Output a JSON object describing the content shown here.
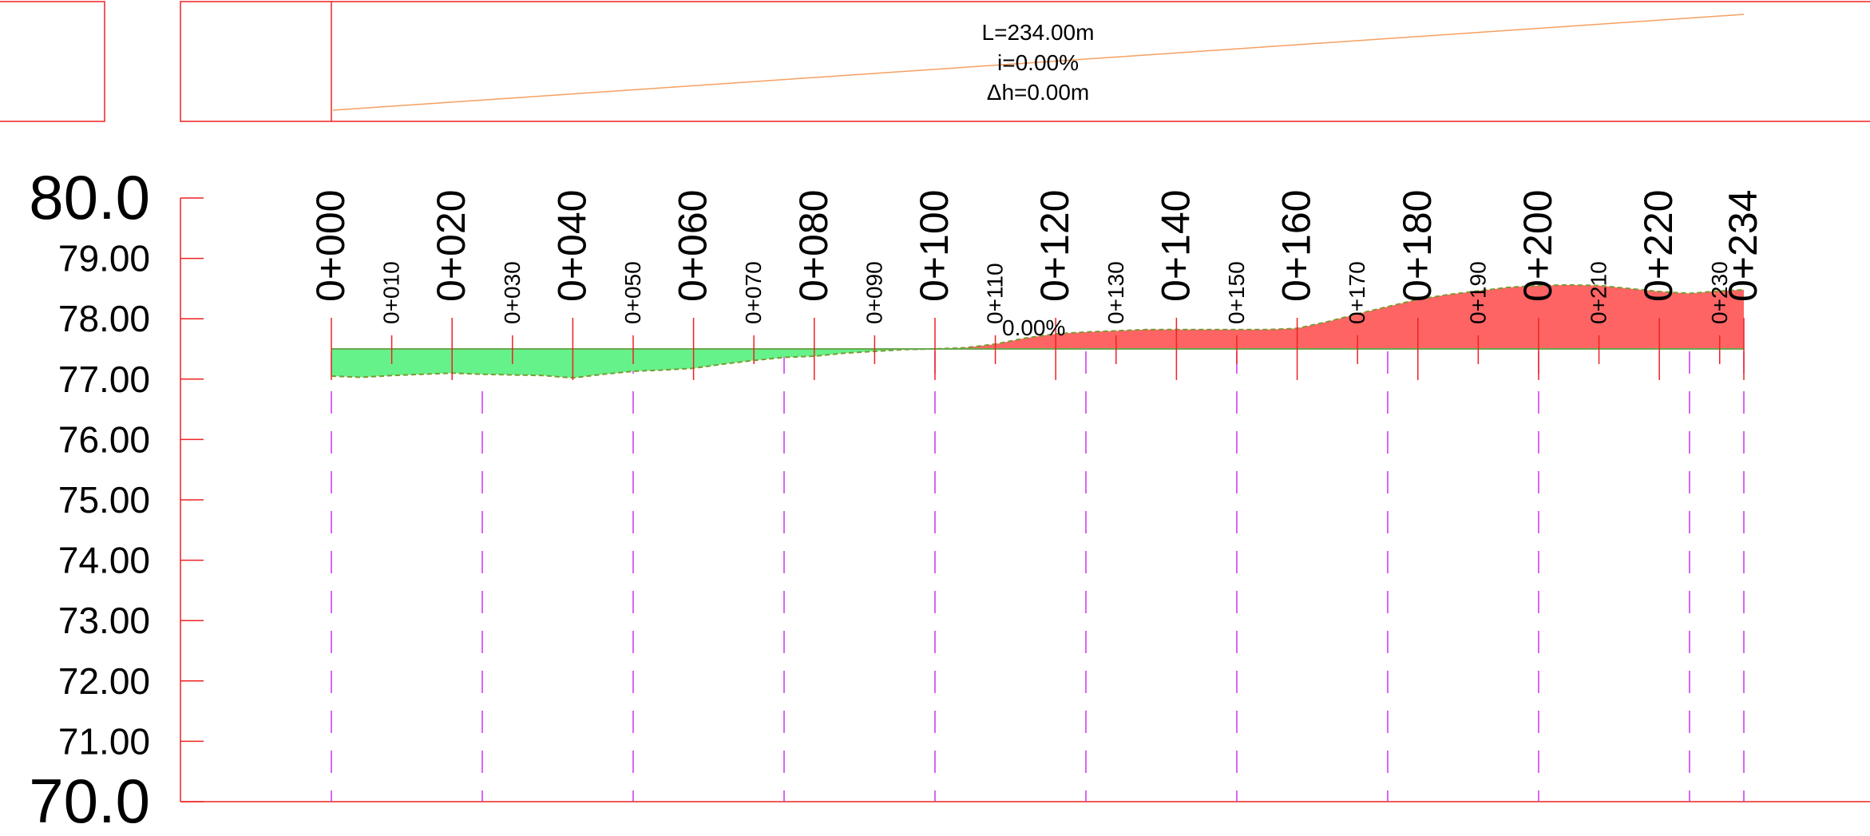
{
  "colors": {
    "frame": "#ee2222",
    "cut": "#ff6464",
    "fill": "#66f28a",
    "design_line": "#6aa84f",
    "ground_line": "#7a9a30",
    "station_dashes": "#cc33ee",
    "grade_line": "#f5a060"
  },
  "grade_box": {
    "length": "L=234.00m",
    "grade": "i=0.00%",
    "delta_h": "Δh=0.00m"
  },
  "grade_label": "0.00%",
  "chart_data": {
    "type": "area",
    "title": "",
    "xlabel": "",
    "ylabel": "",
    "xlim": [
      0,
      234
    ],
    "ylim": [
      70,
      80
    ],
    "grid": false,
    "y_ticks": [
      "80.0",
      "79.00",
      "78.00",
      "77.00",
      "76.00",
      "75.00",
      "74.00",
      "73.00",
      "72.00",
      "71.00",
      "70.0"
    ],
    "y_tick_values": [
      80,
      79,
      78,
      77,
      76,
      75,
      74,
      73,
      72,
      71,
      70
    ],
    "major_station_labels": [
      "0+000",
      "0+020",
      "0+040",
      "0+060",
      "0+080",
      "0+100",
      "0+120",
      "0+140",
      "0+160",
      "0+180",
      "0+200",
      "0+220",
      "0+234"
    ],
    "major_stations": [
      0,
      20,
      40,
      60,
      80,
      100,
      120,
      140,
      160,
      180,
      200,
      220,
      234
    ],
    "minor_station_labels": [
      "0+010",
      "0+030",
      "0+050",
      "0+070",
      "0+090",
      "0+110",
      "0+130",
      "0+150",
      "0+170",
      "0+190",
      "0+210",
      "0+230"
    ],
    "minor_stations": [
      10,
      30,
      50,
      70,
      90,
      110,
      130,
      150,
      170,
      190,
      210,
      230
    ],
    "dashed_stations": [
      0,
      25,
      50,
      75,
      100,
      125,
      150,
      175,
      200,
      225,
      234
    ],
    "design_elevation": 77.5,
    "series": [
      {
        "x": [
          0,
          5,
          10,
          15,
          20,
          25,
          30,
          35,
          40,
          45,
          50,
          55,
          60,
          65,
          70,
          75,
          80,
          85,
          90,
          95,
          100,
          105,
          110,
          115,
          120,
          125,
          130,
          135,
          140,
          145,
          150,
          155,
          160,
          165,
          170,
          175,
          180,
          185,
          190,
          195,
          200,
          205,
          210,
          215,
          220,
          225,
          230,
          234
        ],
        "values": [
          77.05,
          77.03,
          77.06,
          77.08,
          77.1,
          77.08,
          77.07,
          77.06,
          77.02,
          77.08,
          77.13,
          77.15,
          77.18,
          77.25,
          77.31,
          77.36,
          77.38,
          77.43,
          77.46,
          77.49,
          77.5,
          77.52,
          77.58,
          77.68,
          77.75,
          77.78,
          77.8,
          77.82,
          77.82,
          77.82,
          77.82,
          77.82,
          77.84,
          77.95,
          78.08,
          78.2,
          78.32,
          78.4,
          78.46,
          78.52,
          78.55,
          78.56,
          78.55,
          78.5,
          78.45,
          78.42,
          78.46,
          78.48
        ]
      }
    ]
  }
}
